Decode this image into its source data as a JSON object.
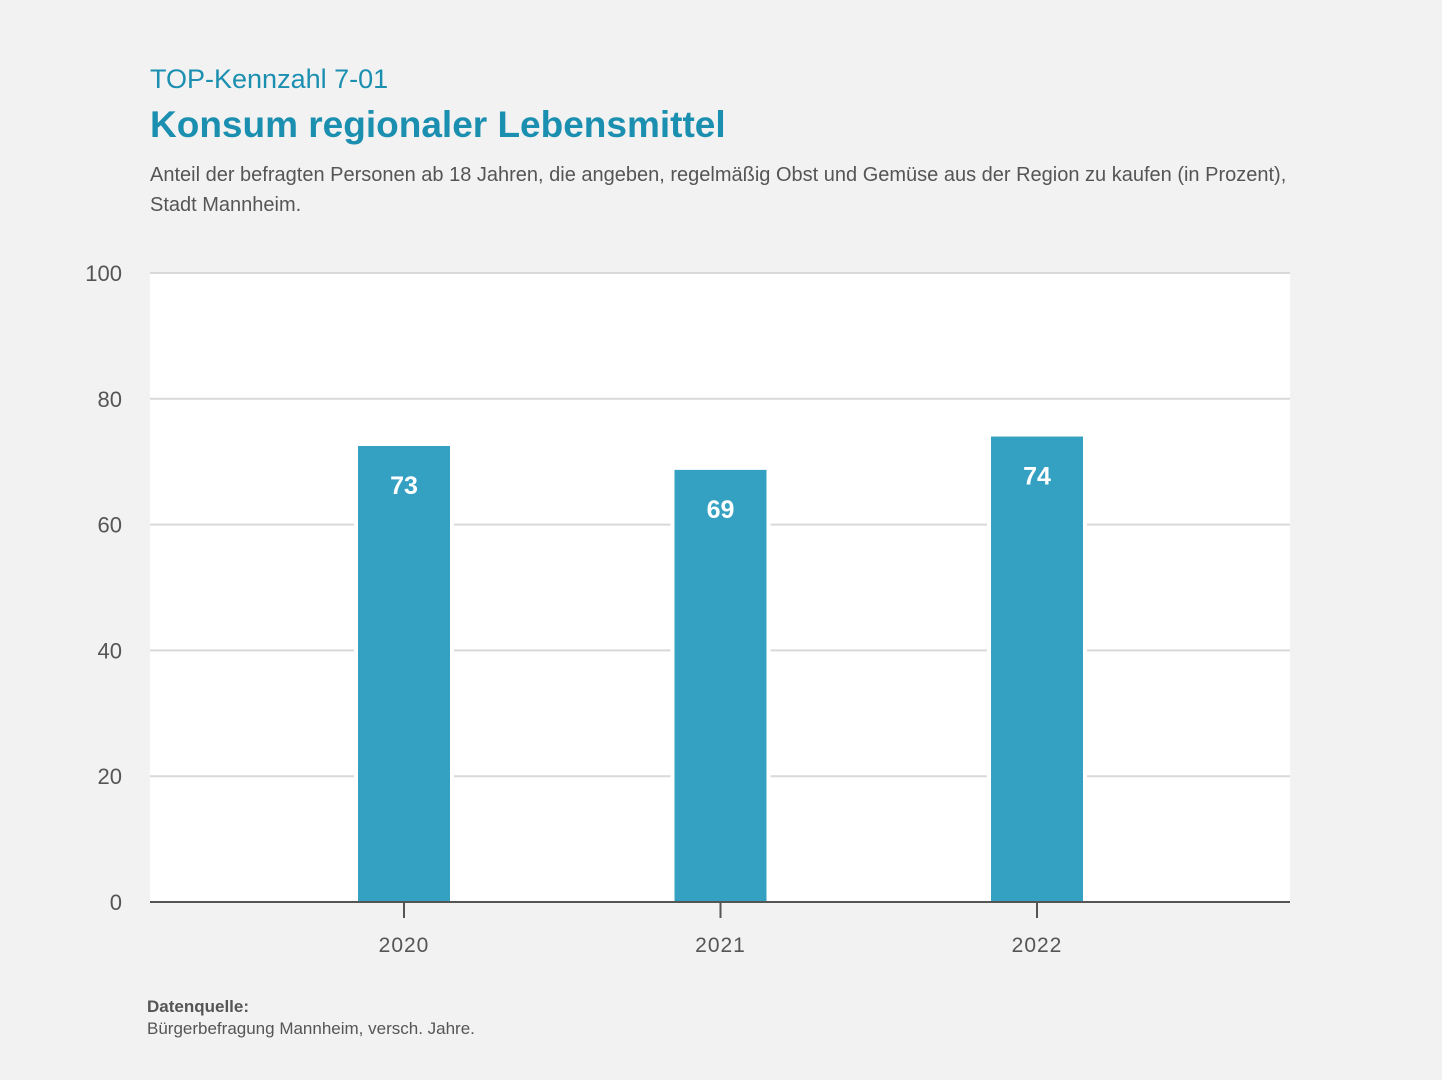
{
  "header": {
    "kicker": "TOP-Kennzahl 7-01",
    "title": "Konsum regionaler Lebensmittel",
    "subtitle": "Anteil der befragten Personen ab 18 Jahren, die angeben, regelmäßig Obst und Gemüse aus der Region zu kaufen (in Prozent), Stadt Mannheim."
  },
  "footer": {
    "source_label": "Datenquelle:",
    "source_text": "Bürgerbefragung Mannheim, versch. Jahre."
  },
  "colors": {
    "bar": "#35a1c2",
    "title": "#1b8fb0",
    "grid": "#d9d9d9",
    "axis": "#555555"
  },
  "chart_data": {
    "type": "bar",
    "title": "Konsum regionaler Lebensmittel",
    "xlabel": "",
    "ylabel": "",
    "categories": [
      "2020",
      "2021",
      "2022"
    ],
    "values": [
      72.5,
      68.7,
      74.0
    ],
    "data_labels": [
      "73",
      "69",
      "74"
    ],
    "ylim": [
      0,
      100
    ],
    "yticks": [
      0,
      20,
      40,
      60,
      80,
      100
    ],
    "ytick_labels": [
      "0",
      "20",
      "40",
      "60",
      "80",
      "100"
    ],
    "grid": true,
    "legend": "none"
  }
}
